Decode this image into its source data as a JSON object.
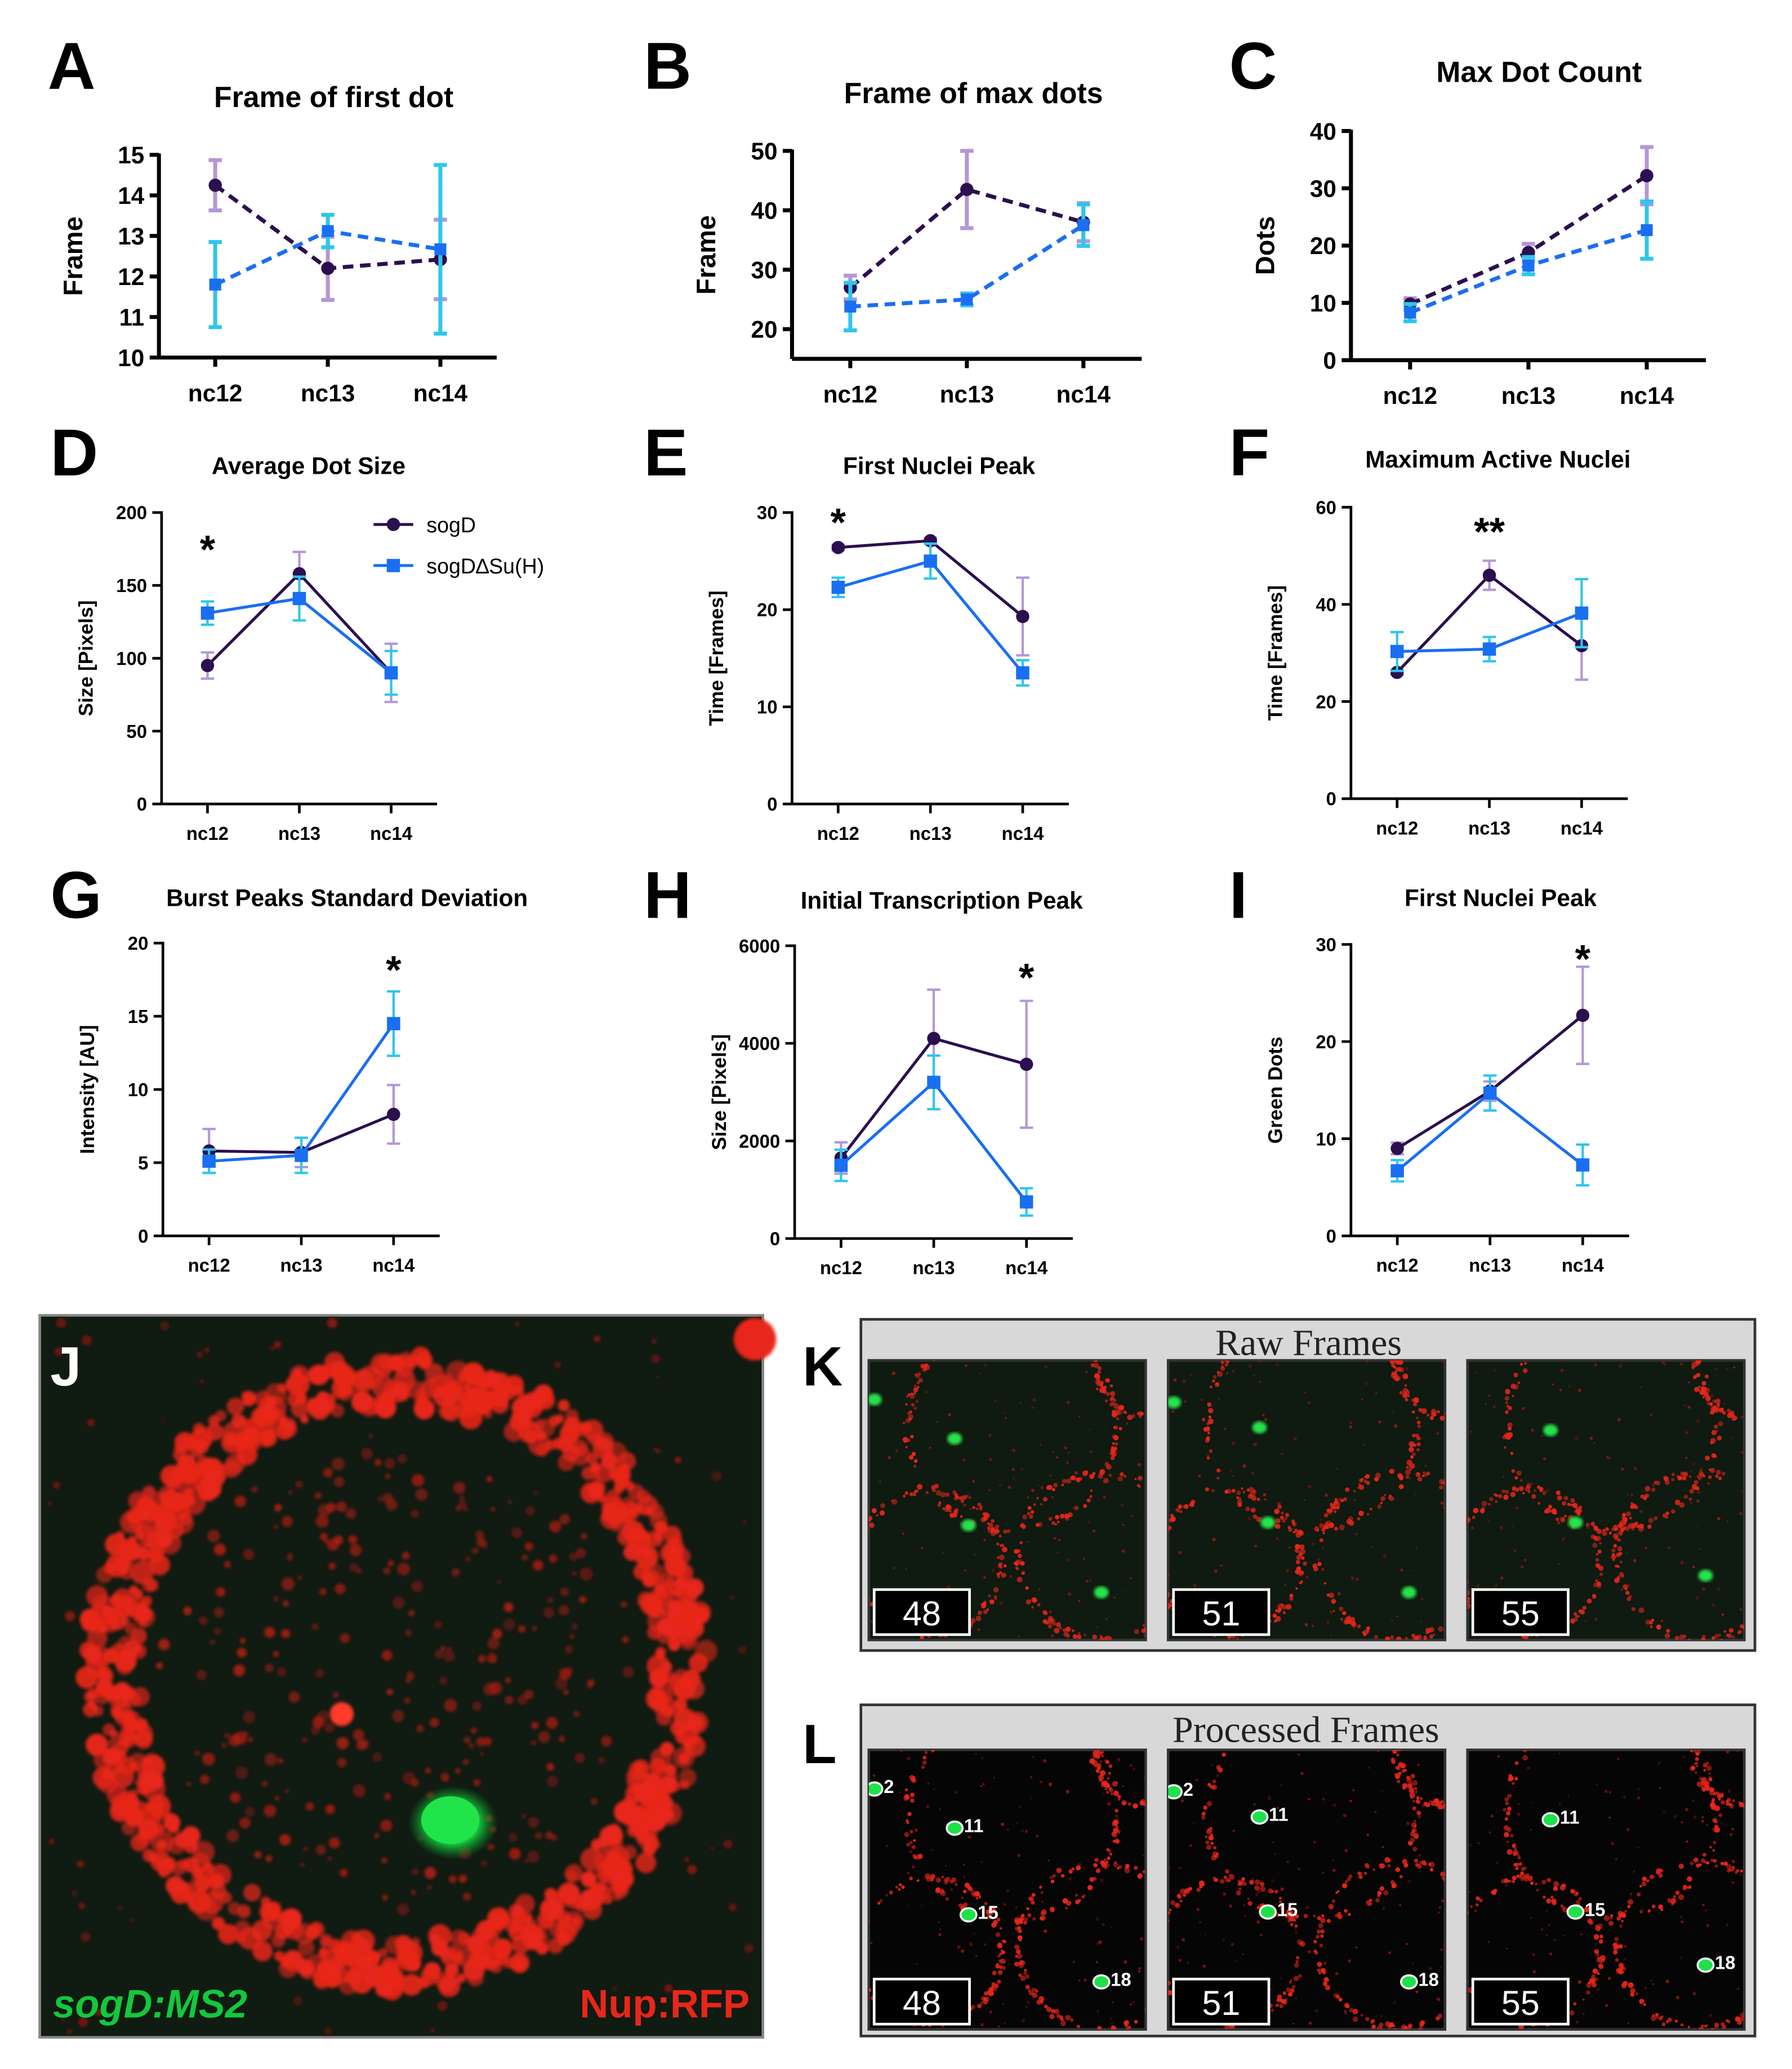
{
  "colors": {
    "sogD": "#2b0f4f",
    "sogD_err": "#b497d6",
    "mut": "#1a6ef2",
    "mut_err": "#2ec6ee",
    "nup_red": "#e8261a",
    "ms2_green": "#13c83c"
  },
  "legend": {
    "series1": "sogD",
    "series2": "sogD∆Su(H)"
  },
  "chart_data": [
    {
      "id": "A",
      "type": "line",
      "title": "Frame of first dot",
      "ylabel": "Frame",
      "xlabel": "",
      "categories": [
        "nc12",
        "nc13",
        "nc14"
      ],
      "ylim": [
        10,
        15
      ],
      "yticks": [
        "10",
        "11",
        "12",
        "13",
        "14",
        "15"
      ],
      "dashed": true,
      "series": [
        {
          "name": "sogD",
          "values": [
            14.25,
            12.2,
            12.42
          ],
          "errors": [
            0.62,
            0.78,
            0.98
          ]
        },
        {
          "name": "sogD∆Su(H)",
          "values": [
            11.8,
            13.12,
            12.67
          ],
          "errors": [
            1.05,
            0.4,
            2.08
          ]
        }
      ]
    },
    {
      "id": "B",
      "type": "line",
      "title": "Frame of max dots",
      "ylabel": "Frame",
      "xlabel": "",
      "categories": [
        "nc12",
        "nc13",
        "nc14"
      ],
      "ylim": [
        15,
        50
      ],
      "yticks": [
        "20",
        "30",
        "40",
        "50"
      ],
      "dashed": true,
      "series": [
        {
          "name": "sogD",
          "values": [
            27,
            43.5,
            38
          ],
          "errors": [
            2,
            6.5,
            3.2
          ]
        },
        {
          "name": "sogD∆Su(H)",
          "values": [
            23.8,
            25,
            37.5
          ],
          "errors": [
            4,
            1,
            3.5
          ]
        }
      ]
    },
    {
      "id": "C",
      "type": "line",
      "title": "Max Dot Count",
      "ylabel": "Dots",
      "xlabel": "",
      "categories": [
        "nc12",
        "nc13",
        "nc14"
      ],
      "ylim": [
        0,
        40
      ],
      "yticks": [
        "0",
        "10",
        "20",
        "30",
        "40"
      ],
      "dashed": true,
      "series": [
        {
          "name": "sogD",
          "values": [
            9.8,
            18.8,
            32.2
          ],
          "errors": [
            1,
            1.5,
            5
          ]
        },
        {
          "name": "sogD∆Su(H)",
          "values": [
            8.3,
            16.5,
            22.7
          ],
          "errors": [
            1.5,
            1.5,
            5
          ]
        }
      ]
    },
    {
      "id": "D",
      "type": "line",
      "title": "Average Dot Size",
      "ylabel": "Size [Pixels]",
      "xlabel": "",
      "categories": [
        "nc12",
        "nc13",
        "nc14"
      ],
      "ylim": [
        0,
        200
      ],
      "yticks": [
        "0",
        "50",
        "100",
        "150",
        "200"
      ],
      "dashed": false,
      "annotations": [
        {
          "text": "*",
          "cat": 0,
          "y": 178
        }
      ],
      "series": [
        {
          "name": "sogD",
          "values": [
            95,
            158,
            90
          ],
          "errors": [
            9,
            15,
            20
          ]
        },
        {
          "name": "sogD∆Su(H)",
          "values": [
            131,
            141,
            90
          ],
          "errors": [
            8,
            15,
            15
          ]
        }
      ]
    },
    {
      "id": "E",
      "type": "line",
      "title": "First Nuclei Peak",
      "ylabel": "Time [Frames]",
      "xlabel": "",
      "categories": [
        "nc12",
        "nc13",
        "nc14"
      ],
      "ylim": [
        0,
        30
      ],
      "yticks": [
        "0",
        "10",
        "20",
        "30"
      ],
      "dashed": false,
      "annotations": [
        {
          "text": "*",
          "cat": 0,
          "y": 29.5
        }
      ],
      "series": [
        {
          "name": "sogD",
          "values": [
            26.4,
            27.1,
            19.3
          ],
          "errors": [
            0.3,
            0.3,
            4
          ]
        },
        {
          "name": "sogD∆Su(H)",
          "values": [
            22.3,
            25,
            13.5
          ],
          "errors": [
            1,
            1.8,
            1.3
          ]
        }
      ]
    },
    {
      "id": "F",
      "type": "line",
      "title": "Maximum Active Nuclei",
      "ylabel": "Time [Frames]",
      "xlabel": "",
      "categories": [
        "nc12",
        "nc13",
        "nc14"
      ],
      "ylim": [
        0,
        60
      ],
      "yticks": [
        "0",
        "20",
        "40",
        "60"
      ],
      "dashed": false,
      "annotations": [
        {
          "text": "**",
          "cat": 1,
          "y": 56
        }
      ],
      "series": [
        {
          "name": "sogD",
          "values": [
            26,
            46,
            31.5
          ],
          "errors": [
            0.5,
            3,
            7
          ]
        },
        {
          "name": "sogD∆Su(H)",
          "values": [
            30.3,
            30.8,
            38.2
          ],
          "errors": [
            4,
            2.5,
            7
          ]
        }
      ]
    },
    {
      "id": "G",
      "type": "line",
      "title": "Burst Peaks Standard Deviation",
      "ylabel": "Intensity [AU]",
      "xlabel": "",
      "categories": [
        "nc12",
        "nc13",
        "nc14"
      ],
      "ylim": [
        0,
        20
      ],
      "yticks": [
        "0",
        "5",
        "10",
        "15",
        "20"
      ],
      "dashed": false,
      "annotations": [
        {
          "text": "*",
          "cat": 2,
          "y": 18.5
        }
      ],
      "series": [
        {
          "name": "sogD",
          "values": [
            5.8,
            5.7,
            8.3
          ],
          "errors": [
            1.5,
            1,
            2
          ]
        },
        {
          "name": "sogD∆Su(H)",
          "values": [
            5.1,
            5.5,
            14.5
          ],
          "errors": [
            0.8,
            1.2,
            2.2
          ]
        }
      ]
    },
    {
      "id": "H",
      "type": "line",
      "title": "Initial Transcription Peak",
      "ylabel": "Size [Pixels]",
      "xlabel": "",
      "categories": [
        "nc12",
        "nc13",
        "nc14"
      ],
      "ylim": [
        0,
        6000
      ],
      "yticks": [
        "0",
        "2000",
        "4000",
        "6000"
      ],
      "dashed": false,
      "annotations": [
        {
          "text": "*",
          "cat": 2,
          "y": 5450
        }
      ],
      "series": [
        {
          "name": "sogD",
          "values": [
            1650,
            4100,
            3570
          ],
          "errors": [
            320,
            1000,
            1300
          ]
        },
        {
          "name": "sogD∆Su(H)",
          "values": [
            1500,
            3200,
            750
          ],
          "errors": [
            320,
            550,
            280
          ]
        }
      ]
    },
    {
      "id": "I",
      "type": "line",
      "title": "First Nuclei Peak",
      "ylabel": "Green Dots",
      "xlabel": "",
      "categories": [
        "nc12",
        "nc13",
        "nc14"
      ],
      "ylim": [
        0,
        30
      ],
      "yticks": [
        "0",
        "10",
        "20",
        "30"
      ],
      "dashed": false,
      "annotations": [
        {
          "text": "*",
          "cat": 2,
          "y": 29
        }
      ],
      "series": [
        {
          "name": "sogD",
          "values": [
            9,
            14.9,
            22.7
          ],
          "errors": [
            0.6,
            1,
            5
          ]
        },
        {
          "name": "sogD∆Su(H)",
          "values": [
            6.7,
            14.7,
            7.3
          ],
          "errors": [
            1.1,
            1.8,
            2.1
          ]
        }
      ]
    }
  ],
  "microscopy": {
    "panel_j": {
      "label": "J",
      "left_caption": "sogD:MS2",
      "right_caption": "Nup:RFP"
    },
    "panel_k": {
      "label": "K",
      "title": "Raw Frames",
      "frames": [
        "48",
        "51",
        "55"
      ]
    },
    "panel_l": {
      "label": "L",
      "title": "Processed Frames",
      "frames": [
        "48",
        "51",
        "55"
      ],
      "dot_labels": [
        [
          "2",
          "11",
          "15",
          "18"
        ],
        [
          "2",
          "11",
          "15",
          "18"
        ],
        [
          "11",
          "15",
          "18"
        ]
      ]
    }
  }
}
